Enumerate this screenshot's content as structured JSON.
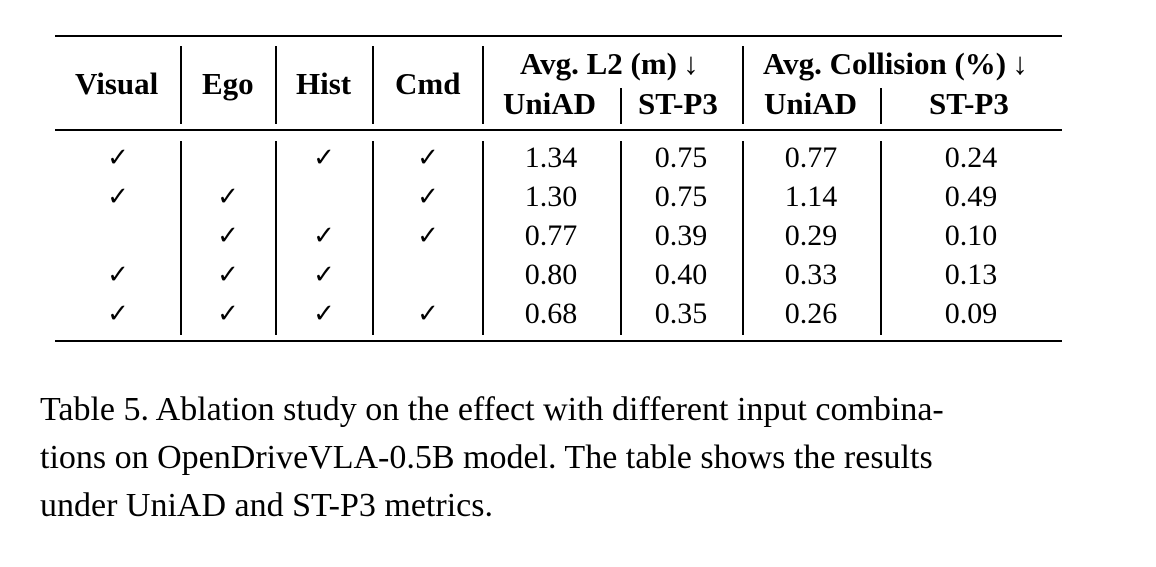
{
  "table": {
    "headers": {
      "visual": "Visual",
      "ego": "Ego",
      "hist": "Hist",
      "cmd": "Cmd",
      "avg_l2": "Avg. L2 (m) ↓",
      "avg_collision": "Avg. Collision (%) ↓",
      "l2_uniad": "UniAD",
      "l2_stp3": "ST-P3",
      "col_uniad": "UniAD",
      "col_stp3": "ST-P3"
    },
    "check_symbol": "✓",
    "rows": [
      {
        "visual": "✓",
        "ego": "",
        "hist": "✓",
        "cmd": "✓",
        "l2_uniad": "1.34",
        "l2_stp3": "0.75",
        "col_uniad": "0.77",
        "col_stp3": "0.24"
      },
      {
        "visual": "✓",
        "ego": "✓",
        "hist": "",
        "cmd": "✓",
        "l2_uniad": "1.30",
        "l2_stp3": "0.75",
        "col_uniad": "1.14",
        "col_stp3": "0.49"
      },
      {
        "visual": "",
        "ego": "✓",
        "hist": "✓",
        "cmd": "✓",
        "l2_uniad": "0.77",
        "l2_stp3": "0.39",
        "col_uniad": "0.29",
        "col_stp3": "0.10"
      },
      {
        "visual": "✓",
        "ego": "✓",
        "hist": "✓",
        "cmd": "",
        "l2_uniad": "0.80",
        "l2_stp3": "0.40",
        "col_uniad": "0.33",
        "col_stp3": "0.13"
      },
      {
        "visual": "✓",
        "ego": "✓",
        "hist": "✓",
        "cmd": "✓",
        "l2_uniad": "0.68",
        "l2_stp3": "0.35",
        "col_uniad": "0.26",
        "col_stp3": "0.09"
      }
    ]
  },
  "caption": {
    "line1": "Table 5. Ablation study on the effect with different input combina-",
    "line2": "tions on OpenDriveVLA-0.5B model. The table shows the results",
    "line3": "under UniAD and ST-P3 metrics."
  }
}
